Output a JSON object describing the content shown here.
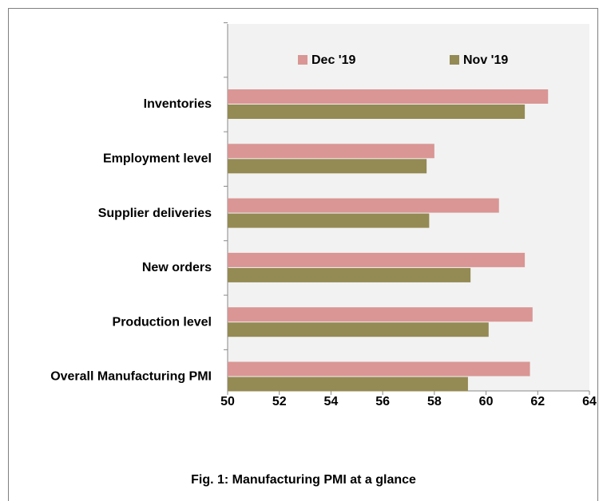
{
  "chart_data": {
    "type": "hbar",
    "caption": "Fig. 1: Manufacturing  PMI at a glance",
    "categories": [
      "Inventories",
      "Employment level",
      "Supplier deliveries",
      "New orders",
      "Production level",
      "Overall Manufacturing PMI"
    ],
    "series": [
      {
        "name": "Dec '19",
        "color": "#d99694",
        "values": [
          62.4,
          58.0,
          60.5,
          61.5,
          61.8,
          61.7
        ]
      },
      {
        "name": "Nov '19",
        "color": "#948a54",
        "values": [
          61.5,
          57.7,
          57.8,
          59.4,
          60.1,
          59.3
        ]
      }
    ],
    "xlim": [
      50,
      64
    ],
    "xticks": [
      50,
      52,
      54,
      56,
      58,
      60,
      62,
      64
    ]
  }
}
